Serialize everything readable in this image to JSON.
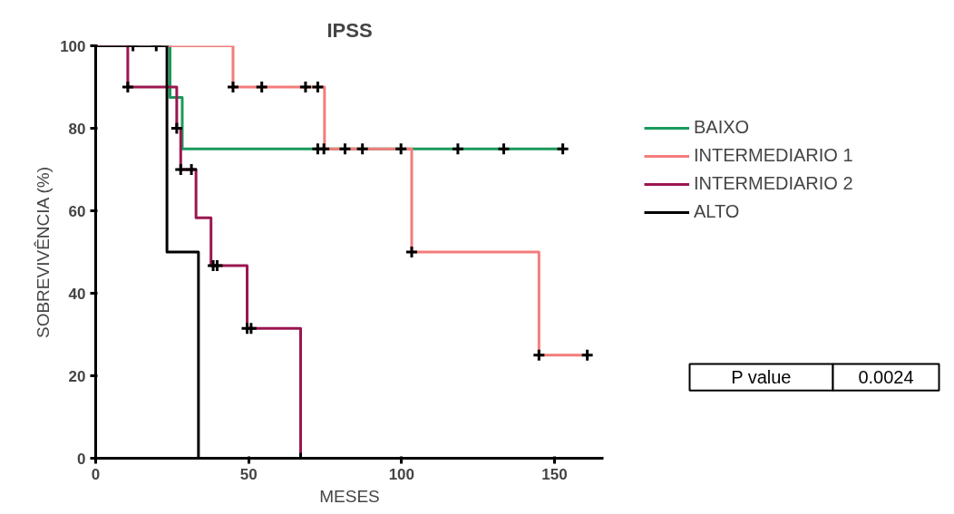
{
  "chart_data": {
    "type": "step",
    "title": "IPSS",
    "xlabel": "MESES",
    "ylabel": "SOBREVIVÊNCIA (%)",
    "xlim": [
      0,
      166
    ],
    "ylim": [
      0,
      100
    ],
    "xticks": [
      0,
      50,
      100,
      150
    ],
    "yticks": [
      0,
      20,
      40,
      60,
      80,
      100
    ],
    "grid": false,
    "legend": "right",
    "line_style": "solid",
    "series": [
      {
        "name": "BAIXO",
        "color": "#1a9a5c",
        "x": [
          0,
          24.3,
          28.3,
          152.7
        ],
        "values": [
          100,
          87.5,
          75,
          75
        ]
      },
      {
        "name": "INTERMEDIARIO 1",
        "color": "#f47c7c",
        "x": [
          0,
          44.9,
          74.8,
          103.3,
          144.9,
          160.7
        ],
        "values": [
          100,
          90,
          75,
          50,
          25,
          25
        ]
      },
      {
        "name": "INTERMEDIARIO 2",
        "color": "#9b1650",
        "x": [
          0,
          10.5,
          26.5,
          27.8,
          32.8,
          37.7,
          49.5,
          67
        ],
        "values": [
          100,
          90,
          80,
          70,
          58.3,
          46.7,
          31.5,
          0
        ]
      },
      {
        "name": "ALTO",
        "color": "#000000",
        "x": [
          0,
          23.3,
          33.6
        ],
        "values": [
          100,
          50,
          0
        ]
      },
      {
        "type": "scatter",
        "marker": "cross",
        "color": "#000000",
        "x": [
          72.6,
          118.4,
          133.4,
          152.7
        ],
        "values": [
          75,
          75,
          75,
          75
        ]
      },
      {
        "type": "scatter",
        "marker": "cross",
        "color": "#000000",
        "x": [
          44.9,
          54.3,
          68.6,
          72.6,
          74.6,
          81.5,
          87.2,
          99.8,
          103.3,
          144.9,
          160.7
        ],
        "values": [
          90,
          90,
          90,
          90,
          75,
          75,
          75,
          75,
          50,
          25,
          25
        ]
      },
      {
        "type": "scatter",
        "marker": "cross",
        "color": "#000000",
        "x": [
          10.5,
          26.5,
          27.8,
          31.3,
          38.4,
          39.7,
          49.5,
          50.8,
          67
        ],
        "values": [
          90,
          80,
          70,
          70,
          46.7,
          46.7,
          31.5,
          31.5,
          0
        ]
      },
      {
        "type": "scatter",
        "marker": "cross",
        "color": "#000000",
        "x": [
          12.2,
          19.8
        ],
        "values": [
          100,
          100
        ]
      }
    ],
    "annotations": [
      "P value",
      "0.0024"
    ]
  }
}
